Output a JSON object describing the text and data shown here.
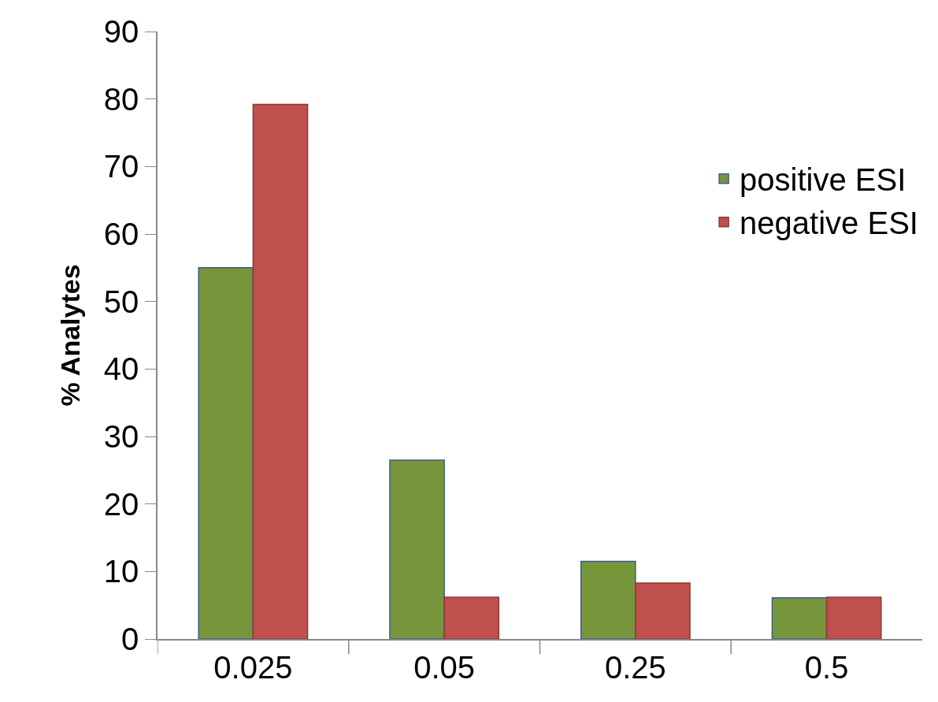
{
  "chart_data": {
    "type": "bar",
    "ylabel": "% Analytes",
    "categories": [
      "0.025",
      "0.05",
      "0.25",
      "0.5"
    ],
    "series": [
      {
        "name": "positive ESI",
        "color": "#77963b",
        "values": [
          55,
          26.5,
          11.5,
          6.1
        ]
      },
      {
        "name": "negative ESI",
        "color": "#c0504d",
        "values": [
          79.2,
          6.2,
          8.3,
          6.2
        ]
      }
    ],
    "ylim": [
      0,
      90
    ],
    "yticks": [
      0,
      10,
      20,
      30,
      40,
      50,
      60,
      70,
      80,
      90
    ],
    "grid": false,
    "legend": "right"
  }
}
